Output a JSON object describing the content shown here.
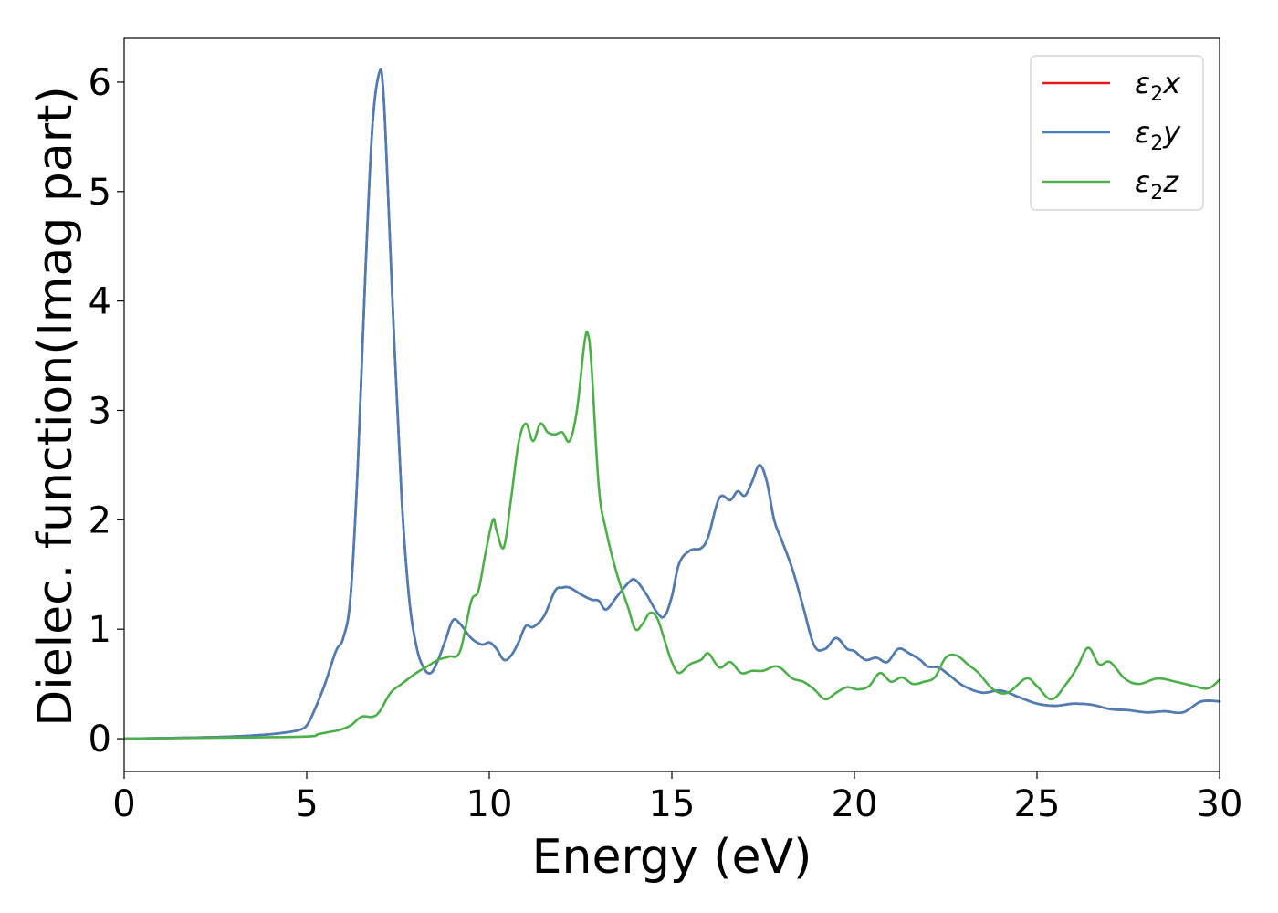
{
  "chart_data": {
    "type": "line",
    "xlabel": "Energy (eV)",
    "ylabel": "Dielec. function(Imag part)",
    "xlim": [
      0,
      30
    ],
    "ylim": [
      -0.3,
      6.4
    ],
    "xticks": [
      0,
      5,
      10,
      15,
      20,
      25,
      30
    ],
    "yticks": [
      0,
      1,
      2,
      3,
      4,
      5,
      6
    ],
    "grid": false,
    "legend_position": "top-right",
    "series": [
      {
        "name": "ε2x",
        "legend_main": "ε",
        "legend_sub": "2",
        "legend_tail": "x",
        "color": "#e41a1c",
        "x": [
          0,
          2,
          3,
          4,
          4.5,
          4.8,
          5.0,
          5.2,
          5.5,
          5.8,
          6.0,
          6.2,
          6.4,
          6.6,
          6.8,
          7.0,
          7.1,
          7.2,
          7.4,
          7.6,
          7.8,
          8.0,
          8.2,
          8.4,
          8.6,
          8.8,
          9.0,
          9.2,
          9.5,
          9.8,
          10.0,
          10.2,
          10.4,
          10.6,
          10.8,
          11.0,
          11.2,
          11.5,
          11.8,
          12.0,
          12.2,
          12.5,
          12.8,
          13.0,
          13.2,
          13.5,
          13.8,
          14.0,
          14.3,
          14.6,
          14.8,
          15.0,
          15.2,
          15.5,
          15.8,
          16.0,
          16.3,
          16.6,
          16.8,
          17.0,
          17.2,
          17.4,
          17.6,
          17.8,
          18.0,
          18.3,
          18.6,
          18.9,
          19.2,
          19.5,
          19.8,
          20.0,
          20.3,
          20.6,
          20.9,
          21.2,
          21.5,
          21.8,
          22.0,
          22.3,
          22.6,
          23.0,
          23.5,
          24.0,
          24.5,
          25.0,
          25.5,
          26.0,
          26.5,
          27.0,
          27.5,
          28.0,
          28.5,
          29.0,
          29.5,
          30.0
        ],
        "y": [
          0.0,
          0.01,
          0.02,
          0.04,
          0.06,
          0.08,
          0.12,
          0.25,
          0.5,
          0.8,
          0.92,
          1.3,
          2.5,
          4.2,
          5.6,
          6.1,
          5.9,
          5.2,
          3.6,
          2.2,
          1.3,
          0.85,
          0.65,
          0.6,
          0.72,
          0.9,
          1.08,
          1.05,
          0.92,
          0.86,
          0.88,
          0.82,
          0.72,
          0.76,
          0.88,
          1.03,
          1.02,
          1.12,
          1.35,
          1.38,
          1.38,
          1.32,
          1.27,
          1.26,
          1.18,
          1.3,
          1.42,
          1.45,
          1.32,
          1.15,
          1.12,
          1.3,
          1.6,
          1.72,
          1.74,
          1.85,
          2.2,
          2.18,
          2.26,
          2.22,
          2.35,
          2.5,
          2.35,
          2.0,
          1.82,
          1.55,
          1.2,
          0.85,
          0.82,
          0.92,
          0.82,
          0.8,
          0.72,
          0.74,
          0.7,
          0.82,
          0.78,
          0.72,
          0.66,
          0.65,
          0.58,
          0.48,
          0.42,
          0.44,
          0.38,
          0.32,
          0.3,
          0.32,
          0.31,
          0.27,
          0.26,
          0.24,
          0.25,
          0.24,
          0.34,
          0.34
        ]
      },
      {
        "name": "ε2y",
        "legend_main": "ε",
        "legend_sub": "2",
        "legend_tail": "y",
        "color": "#4a7fb5",
        "x": [
          0,
          2,
          3,
          4,
          4.5,
          4.8,
          5.0,
          5.2,
          5.5,
          5.8,
          6.0,
          6.2,
          6.4,
          6.6,
          6.8,
          7.0,
          7.1,
          7.2,
          7.4,
          7.6,
          7.8,
          8.0,
          8.2,
          8.4,
          8.6,
          8.8,
          9.0,
          9.2,
          9.5,
          9.8,
          10.0,
          10.2,
          10.4,
          10.6,
          10.8,
          11.0,
          11.2,
          11.5,
          11.8,
          12.0,
          12.2,
          12.5,
          12.8,
          13.0,
          13.2,
          13.5,
          13.8,
          14.0,
          14.3,
          14.6,
          14.8,
          15.0,
          15.2,
          15.5,
          15.8,
          16.0,
          16.3,
          16.6,
          16.8,
          17.0,
          17.2,
          17.4,
          17.6,
          17.8,
          18.0,
          18.3,
          18.6,
          18.9,
          19.2,
          19.5,
          19.8,
          20.0,
          20.3,
          20.6,
          20.9,
          21.2,
          21.5,
          21.8,
          22.0,
          22.3,
          22.6,
          23.0,
          23.5,
          24.0,
          24.5,
          25.0,
          25.5,
          26.0,
          26.5,
          27.0,
          27.5,
          28.0,
          28.5,
          29.0,
          29.5,
          30.0
        ],
        "y": [
          0.0,
          0.01,
          0.02,
          0.04,
          0.06,
          0.08,
          0.12,
          0.25,
          0.5,
          0.8,
          0.92,
          1.3,
          2.5,
          4.2,
          5.6,
          6.1,
          5.9,
          5.2,
          3.6,
          2.2,
          1.3,
          0.85,
          0.65,
          0.6,
          0.72,
          0.9,
          1.08,
          1.05,
          0.92,
          0.86,
          0.88,
          0.82,
          0.72,
          0.76,
          0.88,
          1.03,
          1.02,
          1.12,
          1.35,
          1.38,
          1.38,
          1.32,
          1.27,
          1.26,
          1.18,
          1.3,
          1.42,
          1.45,
          1.32,
          1.15,
          1.12,
          1.3,
          1.6,
          1.72,
          1.74,
          1.85,
          2.2,
          2.18,
          2.26,
          2.22,
          2.35,
          2.5,
          2.35,
          2.0,
          1.82,
          1.55,
          1.2,
          0.85,
          0.82,
          0.92,
          0.82,
          0.8,
          0.72,
          0.74,
          0.7,
          0.82,
          0.78,
          0.72,
          0.66,
          0.65,
          0.58,
          0.48,
          0.42,
          0.44,
          0.38,
          0.32,
          0.3,
          0.32,
          0.31,
          0.27,
          0.26,
          0.24,
          0.25,
          0.24,
          0.34,
          0.34
        ]
      },
      {
        "name": "ε2z",
        "legend_main": "ε",
        "legend_sub": "2",
        "legend_tail": "z",
        "color": "#4daf4a",
        "x": [
          0,
          3,
          5,
          5.3,
          5.6,
          5.9,
          6.2,
          6.5,
          6.8,
          7.0,
          7.3,
          7.6,
          8.0,
          8.3,
          8.6,
          8.9,
          9.2,
          9.5,
          9.7,
          9.9,
          10.1,
          10.2,
          10.4,
          10.6,
          10.8,
          11.0,
          11.2,
          11.4,
          11.6,
          11.8,
          12.0,
          12.2,
          12.4,
          12.6,
          12.7,
          12.8,
          13.0,
          13.2,
          13.5,
          13.8,
          14.0,
          14.2,
          14.4,
          14.6,
          14.8,
          15.0,
          15.2,
          15.5,
          15.8,
          16.0,
          16.3,
          16.6,
          16.9,
          17.2,
          17.5,
          17.8,
          18.0,
          18.3,
          18.6,
          18.9,
          19.2,
          19.5,
          19.8,
          20.1,
          20.4,
          20.7,
          21.0,
          21.3,
          21.6,
          21.9,
          22.2,
          22.5,
          22.8,
          23.1,
          23.4,
          23.8,
          24.2,
          24.7,
          25.0,
          25.4,
          25.8,
          26.1,
          26.4,
          26.7,
          27.0,
          27.4,
          27.8,
          28.3,
          28.8,
          29.3,
          29.7,
          30.0
        ],
        "y": [
          0.0,
          0.01,
          0.02,
          0.04,
          0.06,
          0.08,
          0.12,
          0.2,
          0.2,
          0.25,
          0.42,
          0.5,
          0.6,
          0.66,
          0.72,
          0.75,
          0.8,
          1.25,
          1.35,
          1.7,
          2.0,
          1.9,
          1.75,
          2.2,
          2.7,
          2.88,
          2.72,
          2.88,
          2.8,
          2.78,
          2.8,
          2.72,
          3.0,
          3.6,
          3.7,
          3.4,
          2.3,
          1.9,
          1.5,
          1.2,
          1.0,
          1.05,
          1.15,
          1.1,
          0.9,
          0.7,
          0.6,
          0.68,
          0.72,
          0.78,
          0.65,
          0.7,
          0.6,
          0.62,
          0.62,
          0.66,
          0.64,
          0.55,
          0.52,
          0.45,
          0.36,
          0.42,
          0.47,
          0.45,
          0.48,
          0.6,
          0.52,
          0.56,
          0.5,
          0.52,
          0.56,
          0.74,
          0.76,
          0.68,
          0.6,
          0.45,
          0.42,
          0.55,
          0.48,
          0.36,
          0.5,
          0.65,
          0.83,
          0.68,
          0.7,
          0.55,
          0.5,
          0.55,
          0.52,
          0.48,
          0.46,
          0.54
        ]
      }
    ]
  }
}
